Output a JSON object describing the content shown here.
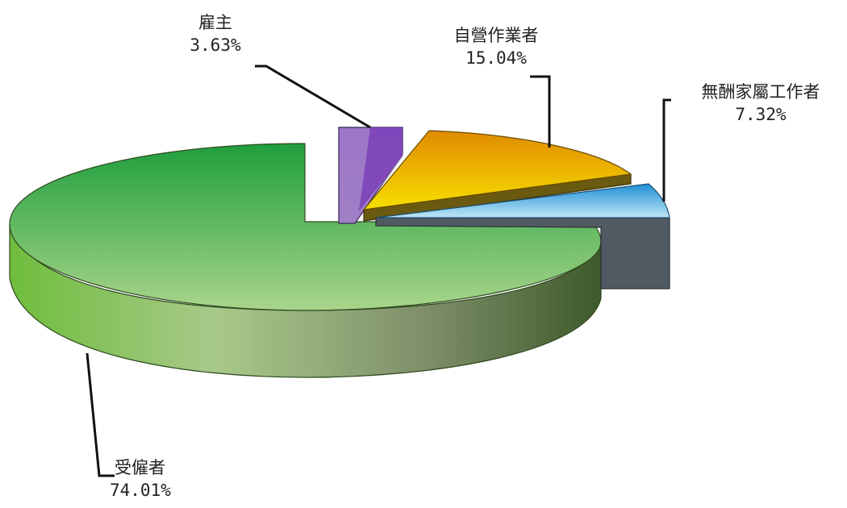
{
  "chart_data": {
    "type": "pie",
    "title": "",
    "categories": [
      "雇主",
      "自營作業者",
      "無酬家屬工作者",
      "受僱者"
    ],
    "values": [
      3.63,
      15.04,
      7.32,
      74.01
    ],
    "value_labels": [
      "3.63%",
      "15.04%",
      "7.32%",
      "74.01%"
    ],
    "unit": "%",
    "style": "3d-exploded",
    "colors": [
      "#8a4fc1",
      "#f0b800",
      "#2ea8e0",
      "#3aab4a"
    ],
    "legend": "none"
  }
}
